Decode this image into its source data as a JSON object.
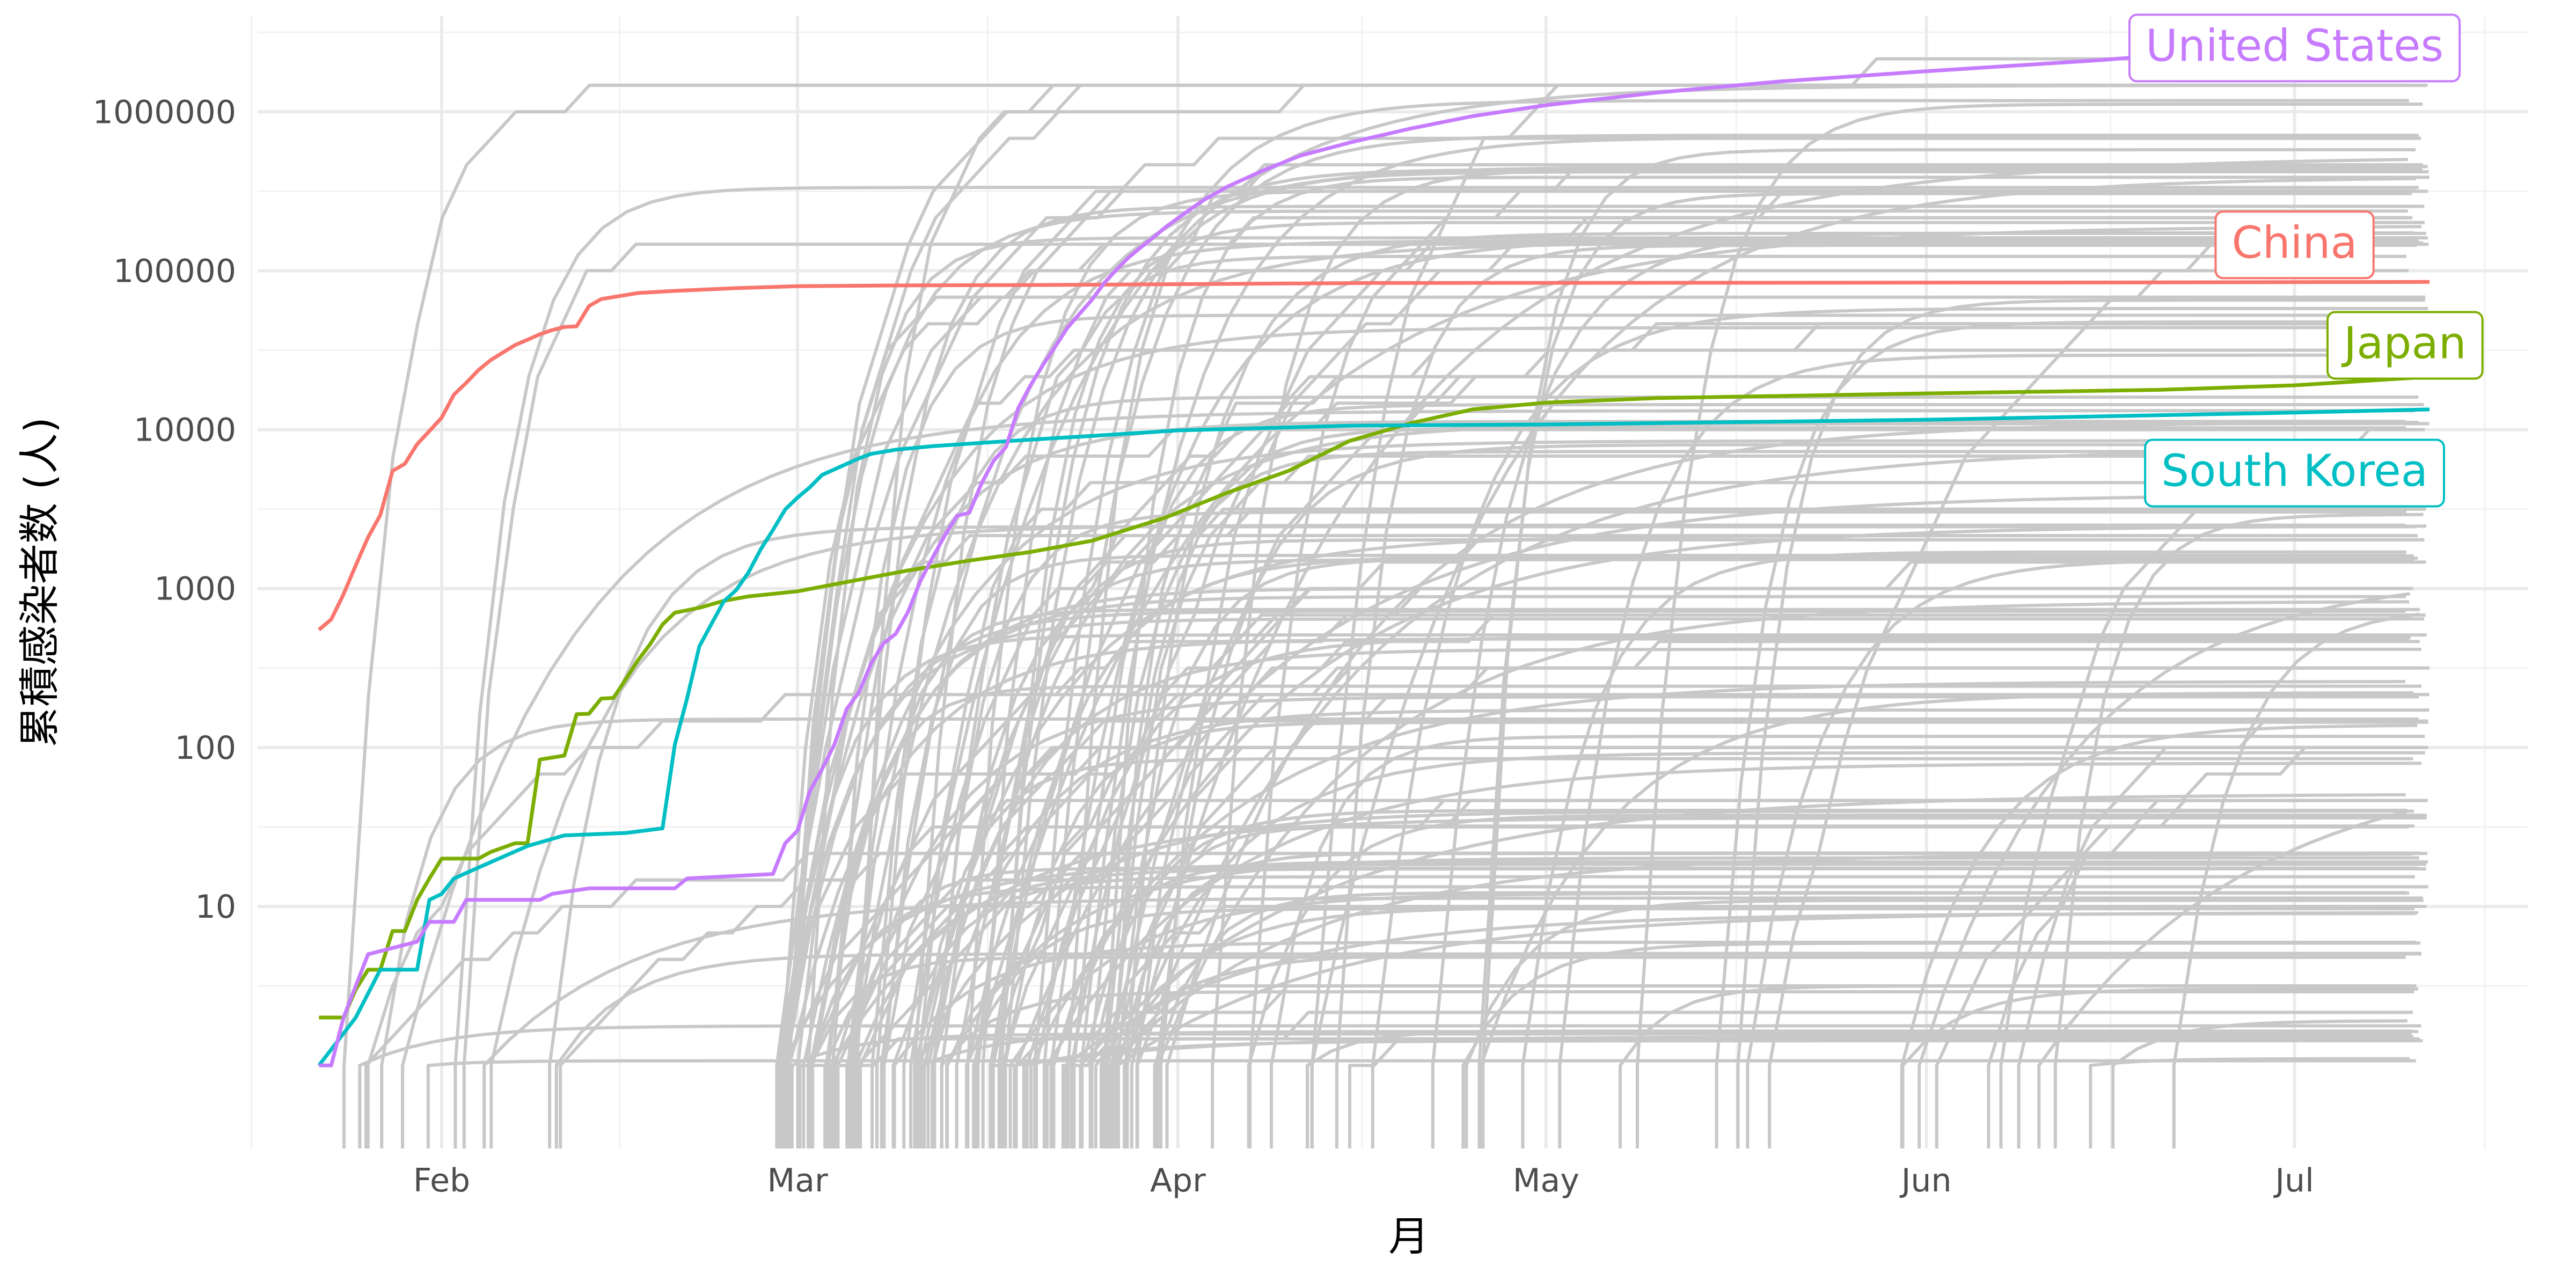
{
  "chart_data": {
    "type": "line",
    "title": "",
    "xlabel": "月",
    "ylabel": "累積感染者数 (人)",
    "y_scale": "log10",
    "x_range": [
      "2020-01-17",
      "2020-07-20"
    ],
    "ylim": [
      0.3,
      4000000
    ],
    "grid": true,
    "legend": "direct labels at line ends",
    "x_ticks": [
      {
        "date": "2020-02-01",
        "label": "Feb"
      },
      {
        "date": "2020-03-01",
        "label": "Mar"
      },
      {
        "date": "2020-04-01",
        "label": "Apr"
      },
      {
        "date": "2020-05-01",
        "label": "May"
      },
      {
        "date": "2020-06-01",
        "label": "Jun"
      },
      {
        "date": "2020-07-01",
        "label": "Jul"
      }
    ],
    "y_ticks": [
      {
        "value": 10,
        "label": "10"
      },
      {
        "value": 100,
        "label": "100"
      },
      {
        "value": 1000,
        "label": "1000"
      },
      {
        "value": 10000,
        "label": "10000"
      },
      {
        "value": 100000,
        "label": "100000"
      },
      {
        "value": 1000000,
        "label": "1000000"
      }
    ],
    "highlighted_series": [
      {
        "name": "China",
        "color": "#F8766D",
        "points": [
          [
            "2020-01-22",
            550
          ],
          [
            "2020-01-23",
            640
          ],
          [
            "2020-01-24",
            920
          ],
          [
            "2020-01-25",
            1400
          ],
          [
            "2020-01-26",
            2100
          ],
          [
            "2020-01-27",
            2900
          ],
          [
            "2020-01-28",
            5500
          ],
          [
            "2020-01-29",
            6100
          ],
          [
            "2020-01-30",
            8100
          ],
          [
            "2020-01-31",
            9800
          ],
          [
            "2020-02-01",
            11900
          ],
          [
            "2020-02-02",
            16600
          ],
          [
            "2020-02-03",
            19700
          ],
          [
            "2020-02-04",
            23700
          ],
          [
            "2020-02-05",
            27400
          ],
          [
            "2020-02-06",
            30600
          ],
          [
            "2020-02-07",
            34100
          ],
          [
            "2020-02-08",
            36800
          ],
          [
            "2020-02-09",
            39800
          ],
          [
            "2020-02-10",
            42300
          ],
          [
            "2020-02-11",
            44300
          ],
          [
            "2020-02-12",
            44700
          ],
          [
            "2020-02-13",
            59900
          ],
          [
            "2020-02-14",
            66300
          ],
          [
            "2020-02-15",
            68300
          ],
          [
            "2020-02-17",
            72400
          ],
          [
            "2020-02-20",
            74700
          ],
          [
            "2020-02-25",
            77700
          ],
          [
            "2020-03-01",
            79900
          ],
          [
            "2020-03-10",
            80900
          ],
          [
            "2020-03-20",
            81300
          ],
          [
            "2020-04-01",
            82300
          ],
          [
            "2020-04-17",
            83700
          ],
          [
            "2020-05-15",
            84000
          ],
          [
            "2020-06-15",
            84300
          ],
          [
            "2020-07-12",
            85000
          ]
        ]
      },
      {
        "name": "Japan",
        "color": "#7CAE00",
        "points": [
          [
            "2020-01-22",
            2
          ],
          [
            "2020-01-24",
            2
          ],
          [
            "2020-01-25",
            3
          ],
          [
            "2020-01-26",
            4
          ],
          [
            "2020-01-27",
            4
          ],
          [
            "2020-01-28",
            7
          ],
          [
            "2020-01-29",
            7
          ],
          [
            "2020-01-30",
            11
          ],
          [
            "2020-01-31",
            15
          ],
          [
            "2020-02-01",
            20
          ],
          [
            "2020-02-04",
            20
          ],
          [
            "2020-02-05",
            22
          ],
          [
            "2020-02-07",
            25
          ],
          [
            "2020-02-08",
            25
          ],
          [
            "2020-02-09",
            84
          ],
          [
            "2020-02-11",
            89
          ],
          [
            "2020-02-12",
            162
          ],
          [
            "2020-02-13",
            163
          ],
          [
            "2020-02-14",
            203
          ],
          [
            "2020-02-15",
            205
          ],
          [
            "2020-02-16",
            268
          ],
          [
            "2020-02-17",
            354
          ],
          [
            "2020-02-18",
            448
          ],
          [
            "2020-02-19",
            594
          ],
          [
            "2020-02-20",
            705
          ],
          [
            "2020-02-22",
            757
          ],
          [
            "2020-02-24",
            838
          ],
          [
            "2020-02-26",
            893
          ],
          [
            "2020-03-01",
            961
          ],
          [
            "2020-03-05",
            1100
          ],
          [
            "2020-03-10",
            1300
          ],
          [
            "2020-03-15",
            1500
          ],
          [
            "2020-03-20",
            1700
          ],
          [
            "2020-03-25",
            2000
          ],
          [
            "2020-03-31",
            2800
          ],
          [
            "2020-04-05",
            4000
          ],
          [
            "2020-04-10",
            5500
          ],
          [
            "2020-04-15",
            8500
          ],
          [
            "2020-04-20",
            11000
          ],
          [
            "2020-04-25",
            13400
          ],
          [
            "2020-05-01",
            14800
          ],
          [
            "2020-05-10",
            15800
          ],
          [
            "2020-06-01",
            16900
          ],
          [
            "2020-06-20",
            17800
          ],
          [
            "2020-07-01",
            19000
          ],
          [
            "2020-07-12",
            21500
          ]
        ]
      },
      {
        "name": "South Korea",
        "color": "#00BFC4",
        "points": [
          [
            "2020-01-22",
            1
          ],
          [
            "2020-01-25",
            2
          ],
          [
            "2020-01-27",
            4
          ],
          [
            "2020-01-30",
            4
          ],
          [
            "2020-01-31",
            11
          ],
          [
            "2020-02-01",
            12
          ],
          [
            "2020-02-02",
            15
          ],
          [
            "2020-02-05",
            19
          ],
          [
            "2020-02-08",
            24
          ],
          [
            "2020-02-11",
            28
          ],
          [
            "2020-02-16",
            29
          ],
          [
            "2020-02-19",
            31
          ],
          [
            "2020-02-20",
            104
          ],
          [
            "2020-02-21",
            204
          ],
          [
            "2020-02-22",
            433
          ],
          [
            "2020-02-23",
            602
          ],
          [
            "2020-02-24",
            833
          ],
          [
            "2020-02-25",
            977
          ],
          [
            "2020-02-26",
            1261
          ],
          [
            "2020-02-27",
            1766
          ],
          [
            "2020-02-28",
            2337
          ],
          [
            "2020-02-29",
            3150
          ],
          [
            "2020-03-01",
            3736
          ],
          [
            "2020-03-02",
            4335
          ],
          [
            "2020-03-03",
            5186
          ],
          [
            "2020-03-04",
            5621
          ],
          [
            "2020-03-05",
            6088
          ],
          [
            "2020-03-06",
            6593
          ],
          [
            "2020-03-07",
            7041
          ],
          [
            "2020-03-09",
            7478
          ],
          [
            "2020-03-12",
            7869
          ],
          [
            "2020-03-15",
            8162
          ],
          [
            "2020-03-20",
            8652
          ],
          [
            "2020-03-25",
            9137
          ],
          [
            "2020-04-01",
            9887
          ],
          [
            "2020-04-15",
            10591
          ],
          [
            "2020-05-01",
            10774
          ],
          [
            "2020-06-01",
            11541
          ],
          [
            "2020-07-01",
            12800
          ],
          [
            "2020-07-12",
            13400
          ]
        ]
      },
      {
        "name": "United States",
        "color": "#C77CFF",
        "points": [
          [
            "2020-01-22",
            1
          ],
          [
            "2020-01-23",
            1
          ],
          [
            "2020-01-24",
            2
          ],
          [
            "2020-01-26",
            5
          ],
          [
            "2020-01-30",
            6
          ],
          [
            "2020-01-31",
            8
          ],
          [
            "2020-02-02",
            8
          ],
          [
            "2020-02-03",
            11
          ],
          [
            "2020-02-09",
            11
          ],
          [
            "2020-02-10",
            12
          ],
          [
            "2020-02-13",
            13
          ],
          [
            "2020-02-20",
            13
          ],
          [
            "2020-02-21",
            15
          ],
          [
            "2020-02-28",
            16
          ],
          [
            "2020-02-29",
            25
          ],
          [
            "2020-03-01",
            30
          ],
          [
            "2020-03-02",
            53
          ],
          [
            "2020-03-03",
            73
          ],
          [
            "2020-03-04",
            104
          ],
          [
            "2020-03-05",
            174
          ],
          [
            "2020-03-06",
            222
          ],
          [
            "2020-03-07",
            337
          ],
          [
            "2020-03-08",
            451
          ],
          [
            "2020-03-09",
            519
          ],
          [
            "2020-03-10",
            711
          ],
          [
            "2020-03-11",
            1109
          ],
          [
            "2020-03-12",
            1561
          ],
          [
            "2020-03-13",
            2157
          ],
          [
            "2020-03-14",
            2870
          ],
          [
            "2020-03-15",
            3000
          ],
          [
            "2020-03-16",
            4600
          ],
          [
            "2020-03-17",
            6400
          ],
          [
            "2020-03-18",
            7800
          ],
          [
            "2020-03-19",
            13700
          ],
          [
            "2020-03-20",
            19100
          ],
          [
            "2020-03-21",
            25500
          ],
          [
            "2020-03-22",
            33300
          ],
          [
            "2020-03-23",
            43800
          ],
          [
            "2020-03-24",
            53700
          ],
          [
            "2020-03-25",
            65800
          ],
          [
            "2020-03-26",
            83800
          ],
          [
            "2020-03-27",
            101700
          ],
          [
            "2020-03-28",
            121500
          ],
          [
            "2020-03-29",
            140900
          ],
          [
            "2020-03-30",
            161800
          ],
          [
            "2020-03-31",
            188200
          ],
          [
            "2020-04-01",
            214000
          ],
          [
            "2020-04-03",
            275600
          ],
          [
            "2020-04-05",
            337000
          ],
          [
            "2020-04-08",
            429000
          ],
          [
            "2020-04-11",
            530000
          ],
          [
            "2020-04-15",
            640000
          ],
          [
            "2020-04-20",
            785000
          ],
          [
            "2020-04-25",
            938000
          ],
          [
            "2020-05-01",
            1100000
          ],
          [
            "2020-05-10",
            1320000
          ],
          [
            "2020-05-20",
            1550000
          ],
          [
            "2020-06-01",
            1800000
          ],
          [
            "2020-06-15",
            2110000
          ],
          [
            "2020-07-01",
            2640000
          ],
          [
            "2020-07-12",
            3250000
          ]
        ]
      }
    ],
    "labels": [
      {
        "name": "United States",
        "color": "#C77CFF",
        "date": "2020-07-01",
        "value": 2600000
      },
      {
        "name": "China",
        "color": "#F8766D",
        "date": "2020-07-01",
        "value": 150000
      },
      {
        "name": "Japan",
        "color": "#7CAE00",
        "date": "2020-07-10",
        "value": 35000
      },
      {
        "name": "South Korea",
        "color": "#00BFC4",
        "date": "2020-07-01",
        "value": 5500
      }
    ],
    "background_series": {
      "description": "other countries, drawn in grey",
      "color": "#C8C8C8",
      "count": 185,
      "start_date_range": [
        "2020-01-22",
        "2020-06-25"
      ],
      "final_value_range": [
        1,
        1800000
      ],
      "seed": 7
    }
  }
}
